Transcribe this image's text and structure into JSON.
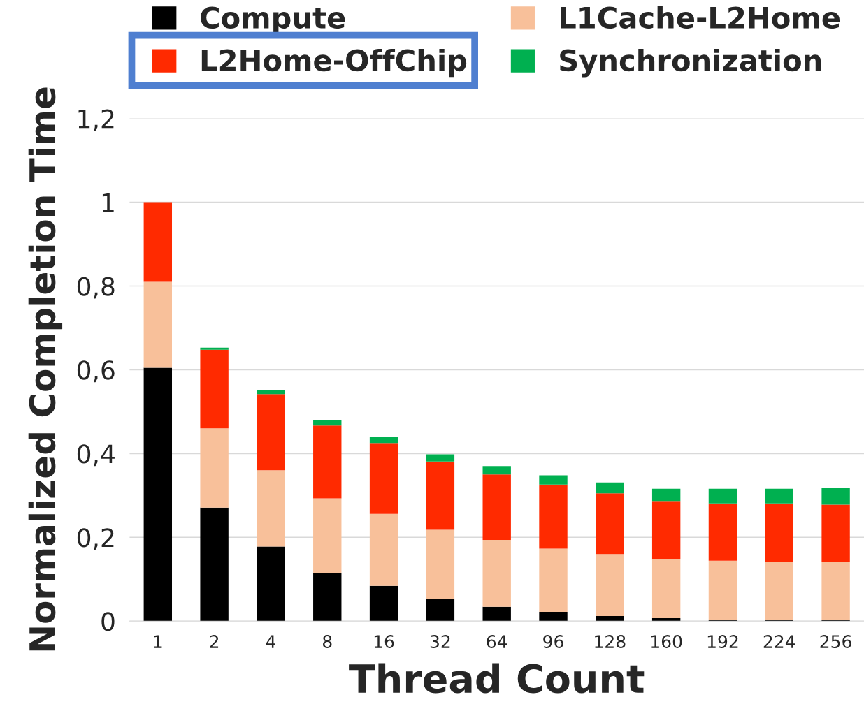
{
  "chart_data": {
    "type": "bar",
    "stacked": true,
    "xlabel": "Thread Count",
    "ylabel": "Normalized Completion Time",
    "categories": [
      "1",
      "2",
      "4",
      "8",
      "16",
      "32",
      "64",
      "96",
      "128",
      "160",
      "192",
      "224",
      "256"
    ],
    "series": [
      {
        "name": "Compute",
        "color": "#000000",
        "values": [
          0.605,
          0.271,
          0.178,
          0.115,
          0.084,
          0.053,
          0.034,
          0.022,
          0.012,
          0.007,
          0.003,
          0.003,
          0.002
        ]
      },
      {
        "name": "L1Cache-L2Home",
        "color": "#f8c09a",
        "values": [
          0.205,
          0.189,
          0.182,
          0.178,
          0.172,
          0.165,
          0.16,
          0.151,
          0.148,
          0.141,
          0.141,
          0.138,
          0.139
        ]
      },
      {
        "name": "L2Home-OffChip",
        "color": "#ff2a00",
        "values": [
          0.19,
          0.188,
          0.182,
          0.174,
          0.169,
          0.163,
          0.156,
          0.153,
          0.145,
          0.137,
          0.137,
          0.14,
          0.137
        ]
      },
      {
        "name": "Synchronization",
        "color": "#00b050",
        "values": [
          0.0,
          0.005,
          0.009,
          0.012,
          0.014,
          0.017,
          0.02,
          0.022,
          0.026,
          0.031,
          0.035,
          0.035,
          0.041
        ]
      }
    ],
    "ylim": [
      0,
      1.2
    ],
    "yticks": [
      0,
      {
        "value": 0.2,
        "label": "0,2"
      },
      {
        "value": 0.4,
        "label": "0,4"
      },
      {
        "value": 0.6,
        "label": "0,6"
      },
      {
        "value": 0.8,
        "label": "0,8"
      },
      1,
      {
        "value": 1.2,
        "label": "1,2"
      }
    ],
    "grid": "y",
    "legend": "top"
  }
}
